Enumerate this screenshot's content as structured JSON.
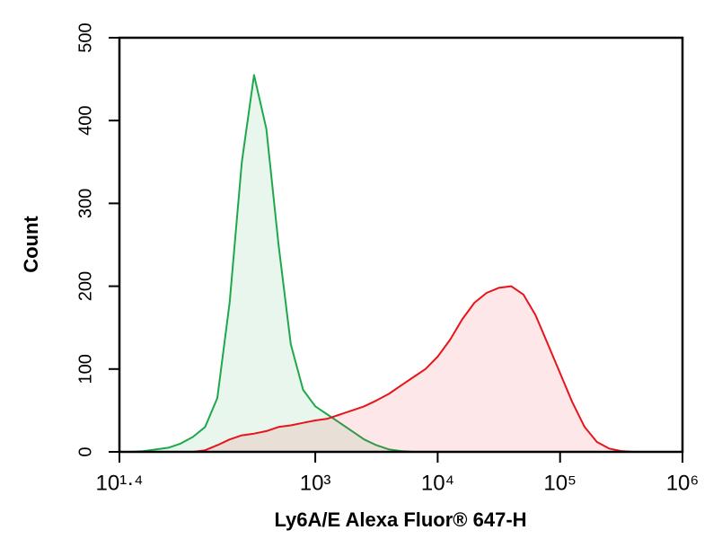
{
  "chart_data": {
    "type": "histogram-line",
    "x_label": "Ly6A/E Alexa Fluor® 647-H",
    "y_label": "Count",
    "xscale": "log",
    "xlim": [
      25.12,
      1000000
    ],
    "xticks": [
      {
        "value": 25.12,
        "label": "10¹·⁴"
      },
      {
        "value": 1000,
        "label": "10³"
      },
      {
        "value": 10000,
        "label": "10⁴"
      },
      {
        "value": 100000,
        "label": "10⁵"
      },
      {
        "value": 1000000,
        "label": "10⁶"
      }
    ],
    "ylim": [
      0,
      500
    ],
    "yticks": [
      0,
      100,
      200,
      300,
      400,
      500
    ],
    "grid": false,
    "x": [
      25.12,
      31.62,
      39.81,
      50.12,
      63.1,
      79.43,
      100,
      125.9,
      158.5,
      199.5,
      251.2,
      316.2,
      398.1,
      501.2,
      631,
      794.3,
      1000,
      1259,
      1585,
      1995,
      2512,
      3162,
      3981,
      5012,
      6310,
      7943,
      10000,
      12589,
      15849,
      19953,
      25119,
      31623,
      39811,
      50119,
      63096,
      79433,
      100000,
      125893,
      158489,
      199526,
      251189,
      316228,
      398107,
      501187,
      630957,
      794328,
      1000000
    ],
    "series": [
      {
        "color": "#1fa84a",
        "values": [
          0,
          0,
          1,
          3,
          5,
          10,
          18,
          30,
          65,
          180,
          350,
          455,
          390,
          250,
          130,
          75,
          55,
          45,
          35,
          25,
          15,
          8,
          3,
          1,
          0,
          0,
          0,
          0,
          0,
          0,
          0,
          0,
          0,
          0,
          0,
          0,
          0,
          0,
          0,
          0,
          0,
          0,
          0,
          0,
          0,
          0,
          0
        ]
      },
      {
        "color": "#e8141c",
        "values": [
          0,
          0,
          0,
          0,
          0,
          0,
          0,
          2,
          8,
          15,
          20,
          22,
          25,
          30,
          32,
          35,
          38,
          40,
          45,
          50,
          55,
          62,
          70,
          80,
          90,
          100,
          115,
          135,
          160,
          180,
          192,
          198,
          200,
          190,
          165,
          130,
          95,
          60,
          30,
          12,
          4,
          1,
          0,
          0,
          0,
          0,
          0
        ]
      }
    ]
  }
}
